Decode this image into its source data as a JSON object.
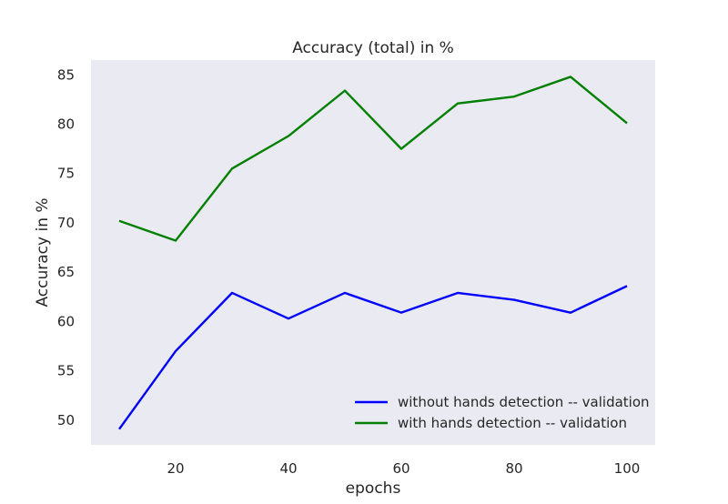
{
  "chart_data": {
    "type": "line",
    "title": "Accuracy (total)  in %",
    "xlabel": "epochs",
    "ylabel": "Accuracy in %",
    "xlim": [
      5,
      105
    ],
    "ylim": [
      47.5,
      86.5
    ],
    "xticks": [
      20,
      40,
      60,
      80,
      100
    ],
    "yticks": [
      50,
      55,
      60,
      65,
      70,
      75,
      80,
      85
    ],
    "grid": false,
    "legend_position": "lower-right",
    "x": [
      10,
      20,
      30,
      40,
      50,
      60,
      70,
      80,
      90,
      100
    ],
    "series": [
      {
        "name": "without hands detection -- validation",
        "color": "#0000ff",
        "values": [
          49.1,
          57.0,
          62.9,
          60.3,
          62.9,
          60.9,
          62.9,
          62.2,
          60.9,
          63.6
        ]
      },
      {
        "name": "with hands detection -- validation",
        "color": "#008000",
        "values": [
          70.2,
          68.2,
          75.5,
          78.8,
          83.4,
          77.5,
          82.1,
          82.8,
          84.8,
          80.1
        ]
      }
    ]
  }
}
